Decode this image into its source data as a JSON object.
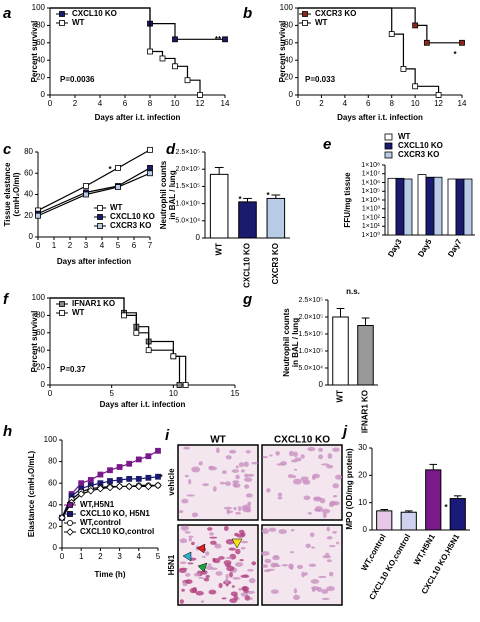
{
  "chart_data": [
    {
      "panel": "a",
      "type": "survival",
      "ylabel": [
        "Percent survival"
      ],
      "xlabel": "Days after i.t. infection",
      "xlim": [
        0,
        14
      ],
      "xticks": [
        0,
        2,
        4,
        6,
        8,
        10,
        12,
        14
      ],
      "ylim": [
        0,
        100
      ],
      "yticks": [
        0,
        20,
        40,
        60,
        80,
        100
      ],
      "series": [
        {
          "name": "CXCL10 KO",
          "color": "#000000",
          "fill": "#1a1a6e",
          "x": [
            0,
            8,
            10,
            14
          ],
          "values": [
            100,
            82,
            64,
            64
          ]
        },
        {
          "name": "WT",
          "color": "#000000",
          "fill": "#ffffff",
          "x": [
            0,
            8,
            9,
            10,
            11,
            12
          ],
          "values": [
            100,
            50,
            42,
            33,
            17,
            0
          ]
        }
      ],
      "annotations": [
        "**",
        "P=0.0036"
      ]
    },
    {
      "panel": "b",
      "type": "survival",
      "ylabel": [
        "Percent survival"
      ],
      "xlabel": "Days after i.t. infection",
      "xlim": [
        0,
        14
      ],
      "xticks": [
        0,
        2,
        4,
        6,
        8,
        10,
        12,
        14
      ],
      "ylim": [
        0,
        100
      ],
      "yticks": [
        0,
        20,
        40,
        60,
        80,
        100
      ],
      "series": [
        {
          "name": "CXCR3 KO",
          "color": "#000000",
          "fill": "#8b2a1a",
          "x": [
            0,
            10,
            11,
            14
          ],
          "values": [
            100,
            80,
            60,
            60
          ]
        },
        {
          "name": "WT",
          "color": "#000000",
          "fill": "#ffffff",
          "x": [
            0,
            8,
            9,
            10,
            12
          ],
          "values": [
            100,
            70,
            30,
            10,
            0
          ]
        }
      ],
      "annotations": [
        "*",
        "P=0.033"
      ]
    },
    {
      "panel": "c",
      "type": "line",
      "ylabel": [
        "Tissue elastance",
        "(cmH₂O/ml)"
      ],
      "xlabel": "Days after infection",
      "xlim": [
        0,
        7
      ],
      "xticks": [
        0,
        1,
        2,
        3,
        4,
        5,
        6,
        7
      ],
      "ylim": [
        0,
        80
      ],
      "yticks": [
        0,
        20,
        40,
        60,
        80
      ],
      "x": [
        0,
        3,
        5,
        7
      ],
      "series": [
        {
          "name": "WT",
          "color": "#000000",
          "fill": "#ffffff",
          "marker": "square",
          "values": [
            25,
            48,
            65,
            82
          ]
        },
        {
          "name": "CXCL10 KO",
          "color": "#000000",
          "fill": "#1a1a6e",
          "marker": "square",
          "values": [
            22,
            42,
            48,
            65
          ]
        },
        {
          "name": "CXCR3 KO",
          "color": "#000000",
          "fill": "#b8cce8",
          "marker": "square",
          "values": [
            20,
            40,
            47,
            60
          ]
        }
      ],
      "annotations": [
        "*"
      ]
    },
    {
      "panel": "d",
      "type": "bar",
      "ylabel": [
        "Neutrophil counts",
        "in BAL / lung"
      ],
      "categories": [
        "WT",
        "CXCL10 KO",
        "CXCR3 KO"
      ],
      "values": [
        185000,
        105000,
        115000
      ],
      "errors": [
        20000,
        10000,
        10000
      ],
      "colors": [
        "#ffffff",
        "#1a1a6e",
        "#b8cce8"
      ],
      "ylim": [
        0,
        250000
      ],
      "yticks": [
        0,
        {
          "value": 50000,
          "label": "5.0×10⁴"
        },
        {
          "value": 100000,
          "label": "1.0×10⁵"
        },
        {
          "value": 150000,
          "label": "1.5×10⁵"
        },
        {
          "value": 200000,
          "label": "2.0×10⁵"
        },
        {
          "value": 250000,
          "label": "2.5×10⁵"
        }
      ],
      "annotations": [
        "*",
        "*"
      ]
    },
    {
      "panel": "e",
      "type": "groupedbar",
      "log_scale": true,
      "ylabel": [
        "FFU/mg tissue"
      ],
      "categories": [
        "Day3",
        "Day5",
        "Day7"
      ],
      "ylim": [
        1,
        100000000
      ],
      "yticks": [
        {
          "value": 1,
          "label": "1×10⁰"
        },
        {
          "value": 10,
          "label": "1×10¹"
        },
        {
          "value": 100,
          "label": "1×10²"
        },
        {
          "value": 1000,
          "label": "1×10³"
        },
        {
          "value": 10000,
          "label": "1×10⁴"
        },
        {
          "value": 100000,
          "label": "1×10⁵"
        },
        {
          "value": 1000000,
          "label": "1×10⁶"
        },
        {
          "value": 10000000,
          "label": "1×10⁷"
        },
        {
          "value": 100000000,
          "label": "1×10⁸"
        }
      ],
      "series": [
        {
          "name": "WT",
          "color": "#ffffff",
          "values": [
            3000000,
            8000000,
            2500000
          ]
        },
        {
          "name": "CXCL10 KO",
          "color": "#1a1a6e",
          "values": [
            3000000,
            4000000,
            2500000
          ]
        },
        {
          "name": "CXCR3 KO",
          "color": "#b8cce8",
          "values": [
            2500000,
            4000000,
            2500000
          ]
        }
      ]
    },
    {
      "panel": "f",
      "type": "survival",
      "ylabel": [
        "Percent survival"
      ],
      "xlabel": "Days after i.t. infection",
      "xlim": [
        0,
        15
      ],
      "xticks": [
        0,
        5,
        10,
        15
      ],
      "ylim": [
        0,
        100
      ],
      "yticks": [
        0,
        20,
        40,
        60,
        80,
        100
      ],
      "series": [
        {
          "name": "IFNAR1 KO",
          "color": "#000000",
          "fill": "#888888",
          "x": [
            0,
            6,
            7,
            8,
            10,
            10.5
          ],
          "values": [
            100,
            83,
            67,
            50,
            33,
            0
          ]
        },
        {
          "name": "WT",
          "color": "#000000",
          "fill": "#ffffff",
          "x": [
            0,
            6,
            7,
            8,
            10,
            11
          ],
          "values": [
            100,
            80,
            60,
            40,
            33,
            0
          ]
        }
      ],
      "annotations": [
        "P=0.37"
      ]
    },
    {
      "panel": "g",
      "type": "bar",
      "ylabel": [
        "Neutrophil counts",
        "in BAL / lung"
      ],
      "categories": [
        "WT",
        "IFNAR1 KO"
      ],
      "values": [
        200000,
        175000
      ],
      "errors": [
        25000,
        22000
      ],
      "colors": [
        "#ffffff",
        "#999999"
      ],
      "ylim": [
        0,
        250000
      ],
      "yticks": [
        0,
        {
          "value": 50000,
          "label": "5.0×10⁴"
        },
        {
          "value": 100000,
          "label": "1.0×10⁵"
        },
        {
          "value": 150000,
          "label": "1.5×10⁵"
        },
        {
          "value": 200000,
          "label": "2.0×10⁵"
        },
        {
          "value": 250000,
          "label": "2.5×10⁵"
        }
      ],
      "annotations": [
        "n.s."
      ]
    },
    {
      "panel": "h",
      "type": "line",
      "ylabel": [
        "Elastance (cmH₂O/mL)"
      ],
      "xlabel": "Time (h)",
      "xlim": [
        0,
        5
      ],
      "xticks": [
        0,
        1,
        2,
        3,
        4,
        5
      ],
      "ylim": [
        0,
        100
      ],
      "yticks": [
        0,
        20,
        40,
        60,
        80,
        100
      ],
      "x": [
        0,
        0.5,
        1,
        1.5,
        2,
        2.5,
        3,
        3.5,
        4,
        4.5,
        5
      ],
      "series": [
        {
          "name": "WT,H5N1",
          "color": "#7a1a8a",
          "fill": "#7a1a8a",
          "marker": "square",
          "values": [
            28,
            50,
            60,
            63,
            68,
            72,
            75,
            78,
            82,
            85,
            90
          ]
        },
        {
          "name": "CXCL10 KO, H5N1",
          "color": "#1a1a6e",
          "fill": "#1a1a6e",
          "marker": "square",
          "values": [
            28,
            48,
            55,
            58,
            60,
            62,
            63,
            64,
            64,
            65,
            66
          ]
        },
        {
          "name": "WT,control",
          "color": "#000000",
          "fill": "#ffffff",
          "marker": "circle",
          "values": [
            28,
            45,
            52,
            55,
            56,
            57,
            57,
            57,
            58,
            58,
            58
          ]
        },
        {
          "name": "CXCL10 KO,control",
          "color": "#000000",
          "fill": "#ffffff",
          "marker": "diamond",
          "values": [
            28,
            42,
            50,
            53,
            55,
            56,
            57,
            57,
            57,
            57,
            58
          ]
        }
      ],
      "annotations": [
        "*"
      ]
    },
    {
      "panel": "j",
      "type": "bar",
      "ylabel": [
        "MPO (OD/mg protein)"
      ],
      "categories": [
        "WT,control",
        "CXCL10 KO,control",
        "WT,H5N1",
        "CXCL10 KO,H5N1"
      ],
      "values": [
        7,
        6.5,
        22,
        11.5
      ],
      "errors": [
        0.5,
        0.5,
        2,
        1
      ],
      "colors": [
        "#e8c8e8",
        "#d0d0f0",
        "#7a1a8a",
        "#1a1a7a"
      ],
      "ylim": [
        0,
        30
      ],
      "yticks": [
        0,
        10,
        20,
        30
      ],
      "annotations": [
        "*"
      ]
    }
  ],
  "micrographs": {
    "panel": "i",
    "columns": [
      "WT",
      "CXCL10 KO"
    ],
    "rows": [
      "vehicle",
      "H5N1"
    ]
  }
}
